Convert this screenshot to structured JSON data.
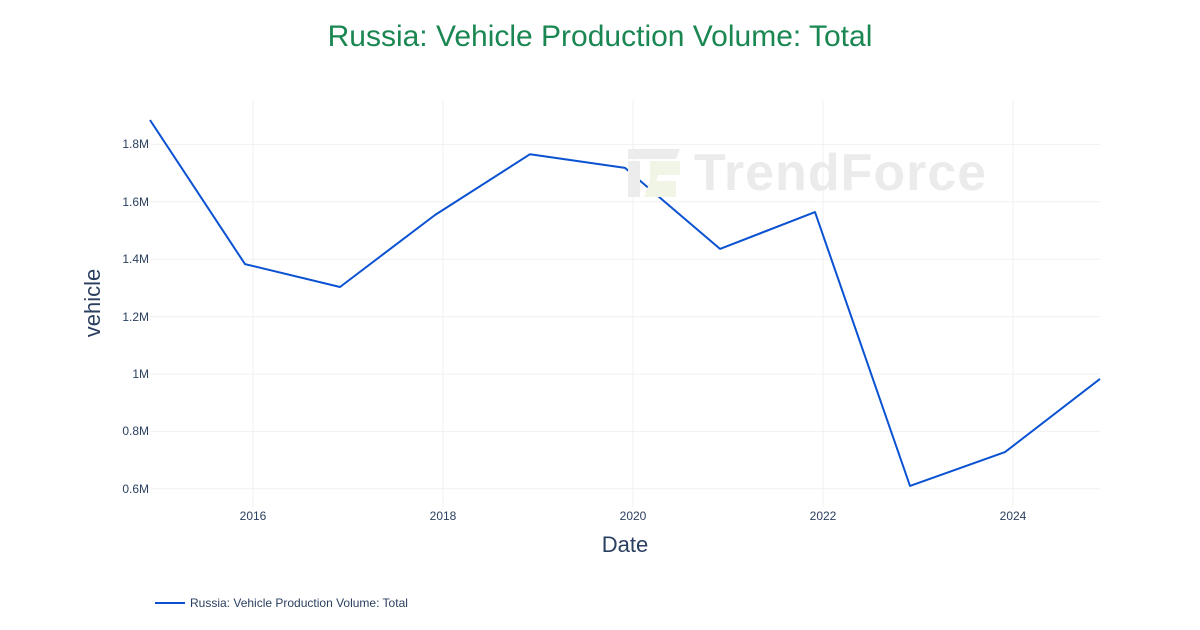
{
  "title": "Russia: Vehicle Production Volume: Total",
  "watermark": "TrendForce",
  "colors": {
    "title": "#1a8753",
    "line": "#0a52d1",
    "axis_text": "#2a3f5f",
    "grid": "#f0f0f0"
  },
  "axes": {
    "xlabel": "Date",
    "ylabel": "vehicle",
    "yticks": [
      "0.6M",
      "0.8M",
      "1M",
      "1.2M",
      "1.4M",
      "1.6M",
      "1.8M"
    ],
    "xticks": [
      "2016",
      "2018",
      "2020",
      "2022",
      "2024"
    ]
  },
  "legend": {
    "label": "Russia: Vehicle Production Volume: Total"
  },
  "chart_data": {
    "type": "line",
    "title": "Russia: Vehicle Production Volume: Total",
    "xlabel": "Date",
    "ylabel": "vehicle",
    "x": [
      "2014-12",
      "2015-12",
      "2016-12",
      "2017-12",
      "2018-12",
      "2019-12",
      "2020-12",
      "2021-12",
      "2022-12",
      "2023-12",
      "2024-12"
    ],
    "series": [
      {
        "name": "Russia: Vehicle Production Volume: Total",
        "values": [
          1885000,
          1383000,
          1303000,
          1554000,
          1766000,
          1718000,
          1436000,
          1564000,
          610000,
          728000,
          983000
        ]
      }
    ],
    "ylim": [
      540000,
      1940000
    ],
    "yticks": [
      600000,
      800000,
      1000000,
      1200000,
      1400000,
      1600000,
      1800000
    ],
    "xticks": [
      "2016",
      "2018",
      "2020",
      "2022",
      "2024"
    ],
    "grid": true,
    "legend_position": "bottom-left"
  }
}
